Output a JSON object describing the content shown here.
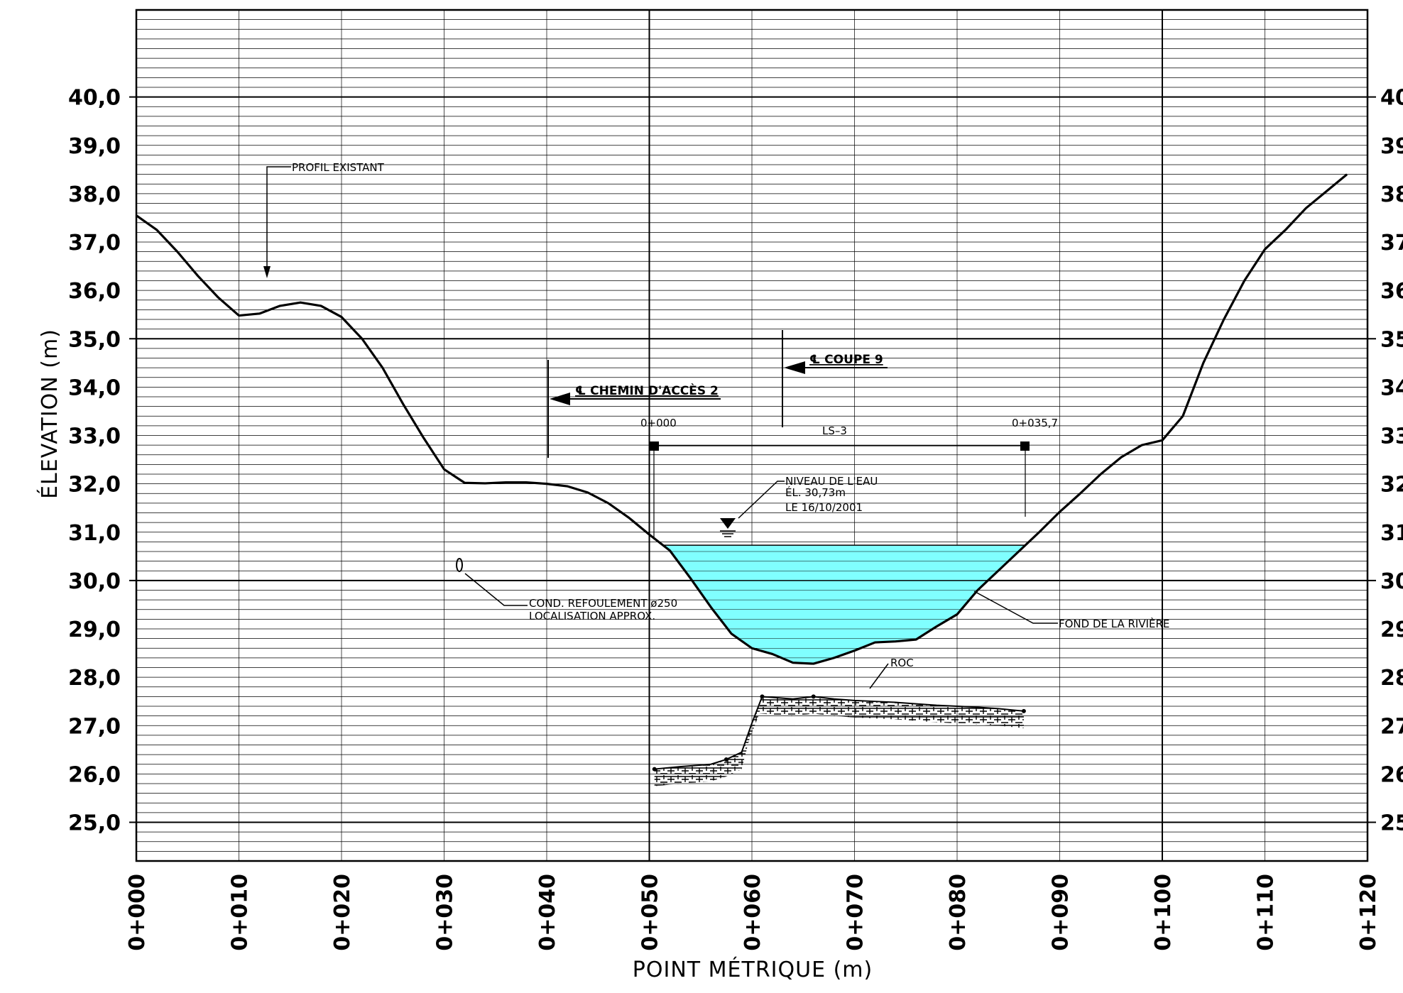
{
  "chart_data": {
    "type": "line",
    "title": "",
    "xlabel": "POINT MÉTRIQUE (m)",
    "ylabel": "ÉLEVATION (m)",
    "xlim": [
      0,
      120
    ],
    "ylim": [
      24.2,
      41.8
    ],
    "grid": true,
    "x_ticks": [
      "0+000",
      "0+010",
      "0+020",
      "0+030",
      "0+040",
      "0+050",
      "0+060",
      "0+070",
      "0+080",
      "0+090",
      "0+100",
      "0+110",
      "0+120"
    ],
    "y_ticks": [
      "25,0",
      "26,0",
      "27,0",
      "28,0",
      "29,0",
      "30,0",
      "31,0",
      "32,0",
      "33,0",
      "34,0",
      "35,0",
      "36,0",
      "37,0",
      "38,0",
      "39,0",
      "40,0"
    ],
    "y_ticks_right": [
      "25",
      "26",
      "27",
      "28",
      "29",
      "30",
      "31",
      "32",
      "33",
      "34",
      "35",
      "36",
      "37",
      "38",
      "39",
      "40"
    ],
    "series": [
      {
        "name": "PROFIL EXISTANT",
        "x": [
          0,
          2,
          4,
          6,
          8,
          10,
          12,
          14,
          16,
          18,
          20,
          22,
          24,
          26,
          28,
          30,
          32,
          34,
          36,
          38,
          40,
          42,
          44,
          46,
          48,
          50,
          52,
          54,
          56,
          58,
          60,
          62,
          64,
          66,
          68,
          70,
          72,
          74,
          76,
          78,
          80,
          82,
          84,
          86,
          88,
          90,
          92,
          94,
          96,
          98,
          100,
          102,
          104,
          106,
          108,
          110,
          112,
          114,
          116,
          118
        ],
        "y": [
          37.55,
          37.25,
          36.8,
          36.3,
          35.85,
          35.48,
          35.52,
          35.68,
          35.75,
          35.68,
          35.45,
          35.0,
          34.4,
          33.65,
          32.95,
          32.3,
          32.02,
          32.01,
          32.03,
          32.03,
          32.0,
          31.95,
          31.82,
          31.6,
          31.3,
          30.95,
          30.62,
          30.05,
          29.45,
          28.9,
          28.6,
          28.48,
          28.3,
          28.28,
          28.4,
          28.55,
          28.72,
          28.74,
          28.78,
          29.05,
          29.3,
          29.8,
          30.2,
          30.6,
          31.0,
          31.42,
          31.8,
          32.2,
          32.55,
          32.8,
          32.9,
          33.4,
          34.5,
          35.4,
          36.2,
          36.85,
          37.25,
          37.7,
          38.05,
          38.4
        ]
      },
      {
        "name": "ROC",
        "x": [
          50.5,
          53,
          56,
          57.5,
          59,
          60,
          61,
          64,
          66,
          68,
          70,
          72,
          74,
          76,
          78,
          80,
          82,
          84,
          86.5
        ],
        "y": [
          26.1,
          26.15,
          26.2,
          26.3,
          26.45,
          27.05,
          27.6,
          27.55,
          27.6,
          27.55,
          27.52,
          27.5,
          27.48,
          27.45,
          27.42,
          27.4,
          27.38,
          27.35,
          27.3
        ]
      }
    ],
    "water_level": 30.73,
    "annotations": {
      "profil": "PROFIL EXISTANT",
      "chemin": "℄ CHEMIN D'ACCÈS 2",
      "coupe": "℄ COUPE 9",
      "ls_start": "0+000",
      "ls_end": "0+035,7",
      "ls_name": "LS–3",
      "niveau_1": "NIVEAU DE L'EAU",
      "niveau_2": "ÉL. 30,73m",
      "niveau_3": "LE 16/10/2001",
      "cond_1": "COND. REFOULEMENT ø250",
      "cond_2": "LOCALISATION APPROX.",
      "fond": "FOND DE LA RIVIÈRE",
      "roc": "ROC"
    }
  }
}
